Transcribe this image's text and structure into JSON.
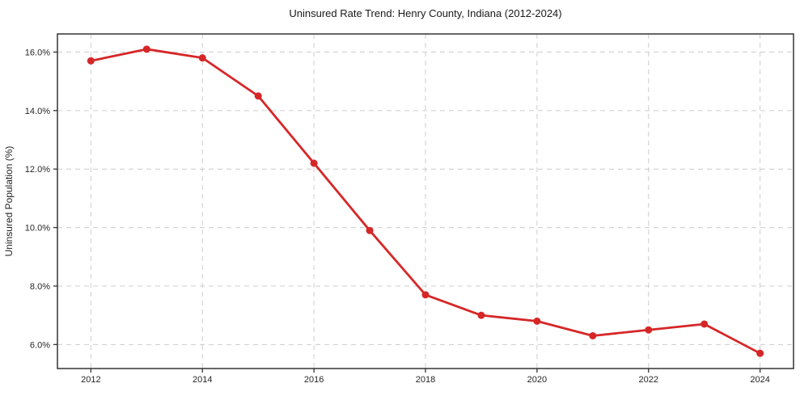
{
  "page": {
    "background_color": "#ffffff"
  },
  "chart_data": {
    "type": "line",
    "title": "Uninsured Rate Trend: Henry County, Indiana (2012-2024)",
    "xlabel": "",
    "ylabel": "Uninsured Population (%)",
    "series": [
      {
        "name": "Uninsured rate",
        "x": [
          2012,
          2013,
          2014,
          2015,
          2016,
          2017,
          2018,
          2019,
          2020,
          2021,
          2022,
          2023,
          2024
        ],
        "values": [
          15.7,
          16.1,
          15.8,
          14.5,
          12.2,
          9.9,
          7.7,
          7.0,
          6.8,
          6.3,
          6.5,
          6.7,
          5.7
        ]
      }
    ],
    "xticks": [
      2012,
      2014,
      2016,
      2018,
      2020,
      2022,
      2024
    ],
    "xtick_labels": [
      "2012",
      "2014",
      "2016",
      "2018",
      "2020",
      "2022",
      "2024"
    ],
    "yticks": [
      6,
      8,
      10,
      12,
      14,
      16
    ],
    "ytick_labels": [
      "6.0%",
      "8.0%",
      "10.0%",
      "12.0%",
      "14.0%",
      "16.0%"
    ],
    "xlim": [
      2011.4,
      2024.6
    ],
    "ylim": [
      5.18,
      16.62
    ],
    "grid": true,
    "grid_style": "dashed",
    "legend": "none",
    "marker": "circle",
    "colors": {
      "line_color": "#d62728",
      "marker_color": "#d62728",
      "grid_color": "#cccccc",
      "axis_color": "#333333",
      "text_color": "#262626",
      "title_color": "#1a1a1a"
    }
  }
}
